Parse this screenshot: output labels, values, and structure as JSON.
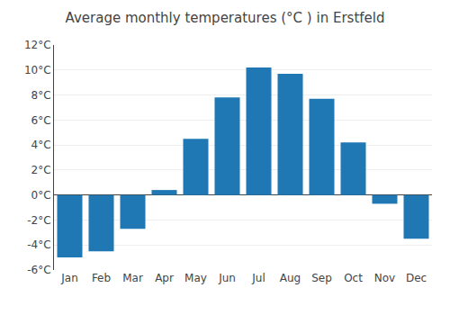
{
  "chart_data": {
    "type": "bar",
    "title": "Average monthly temperatures (°C ) in Erstfeld",
    "categories": [
      "Jan",
      "Feb",
      "Mar",
      "Apr",
      "May",
      "Jun",
      "Jul",
      "Aug",
      "Sep",
      "Oct",
      "Nov",
      "Dec"
    ],
    "values": [
      -5.0,
      -4.5,
      -2.7,
      0.4,
      4.5,
      7.8,
      10.2,
      9.7,
      7.7,
      4.2,
      -0.7,
      -3.5
    ],
    "ylim": [
      -6,
      12
    ],
    "yticks": [
      {
        "value": -6,
        "label": "-6°C"
      },
      {
        "value": -4,
        "label": "-4°C"
      },
      {
        "value": -2,
        "label": "-2°C"
      },
      {
        "value": 0,
        "label": "0°C"
      },
      {
        "value": 2,
        "label": "2°C"
      },
      {
        "value": 4,
        "label": "4°C"
      },
      {
        "value": 6,
        "label": "6°C"
      },
      {
        "value": 8,
        "label": "8°C"
      },
      {
        "value": 10,
        "label": "10°C"
      },
      {
        "value": 12,
        "label": "12°C"
      }
    ],
    "grid": true
  }
}
